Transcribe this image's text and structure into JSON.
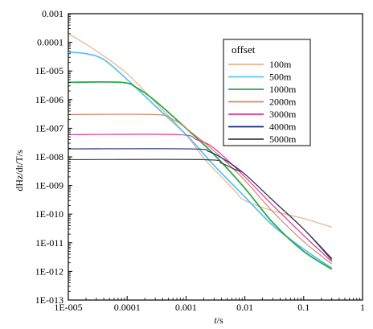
{
  "chart_data": {
    "type": "line",
    "xscale": "log",
    "yscale": "log",
    "xlim": [
      1e-05,
      1
    ],
    "ylim": [
      1e-13,
      0.001
    ],
    "xlabel": "t/s",
    "ylabel": "dHz/dt/T/s",
    "x_tick_labels": [
      "1E-005",
      "0.0001",
      "0.001",
      "0.01",
      "0.1",
      "1"
    ],
    "y_tick_labels": [
      "0.001",
      "0.0001",
      "1E-005",
      "1E-006",
      "1E-007",
      "1E-008",
      "1E-009",
      "1E-010",
      "1E-011",
      "1E-012",
      "1E-013"
    ],
    "legend": {
      "title": "offset",
      "placement": "top-right"
    },
    "grid": false,
    "series": [
      {
        "name": "100m",
        "color": "#e8b48a",
        "points": [
          [
            1e-05,
            0.0002
          ],
          [
            3e-05,
            5e-05
          ],
          [
            0.0001,
            8e-06
          ],
          [
            0.0003,
            8e-07
          ],
          [
            0.001,
            6e-08
          ],
          [
            0.002,
            9e-09
          ],
          [
            0.004,
            2e-09
          ],
          [
            0.007,
            6e-10
          ],
          [
            0.01,
            3e-10
          ],
          [
            0.03,
            1.3e-10
          ],
          [
            0.1,
            7e-11
          ],
          [
            0.3,
            3.5e-11
          ]
        ]
      },
      {
        "name": "500m",
        "color": "#5bc4f0",
        "points": [
          [
            1e-05,
            4.5e-05
          ],
          [
            2e-05,
            4e-05
          ],
          [
            4e-05,
            2.5e-05
          ],
          [
            0.0001,
            5e-06
          ],
          [
            0.0003,
            6e-07
          ],
          [
            0.001,
            6e-08
          ],
          [
            0.003,
            5e-09
          ],
          [
            0.01,
            4e-10
          ],
          [
            0.03,
            4e-11
          ],
          [
            0.1,
            6e-12
          ],
          [
            0.3,
            1.3e-12
          ]
        ]
      },
      {
        "name": "1000m",
        "color": "#2aa84a",
        "points": [
          [
            1e-05,
            4e-06
          ],
          [
            8e-05,
            4e-06
          ],
          [
            0.00015,
            2.5e-06
          ],
          [
            0.0003,
            9e-07
          ],
          [
            0.001,
            1e-07
          ],
          [
            0.003,
            1.2e-08
          ],
          [
            0.01,
            8e-10
          ],
          [
            0.03,
            5e-11
          ],
          [
            0.1,
            5e-12
          ],
          [
            0.3,
            1.2e-12
          ]
        ]
      },
      {
        "name": "2000m",
        "color": "#d4876a",
        "points": [
          [
            1e-05,
            3e-07
          ],
          [
            0.0003,
            3e-07
          ],
          [
            0.0006,
            2e-07
          ],
          [
            0.001,
            1e-07
          ],
          [
            0.003,
            1.6e-08
          ],
          [
            0.01,
            1.5e-09
          ],
          [
            0.03,
            1.2e-10
          ],
          [
            0.1,
            1.1e-11
          ],
          [
            0.3,
            1.8e-12
          ]
        ]
      },
      {
        "name": "3000m",
        "color": "#e2359a",
        "points": [
          [
            1e-05,
            6e-08
          ],
          [
            0.0007,
            6e-08
          ],
          [
            0.0015,
            4e-08
          ],
          [
            0.003,
            2e-08
          ],
          [
            0.01,
            2e-09
          ],
          [
            0.03,
            2e-10
          ],
          [
            0.1,
            1.8e-11
          ],
          [
            0.3,
            2.2e-12
          ]
        ]
      },
      {
        "name": "4000m",
        "color": "#1f2a7a",
        "points": [
          [
            1e-05,
            1.9e-08
          ],
          [
            0.0012,
            1.9e-08
          ],
          [
            0.0025,
            1.5e-08
          ],
          [
            0.005,
            7e-09
          ],
          [
            0.01,
            2.5e-09
          ],
          [
            0.03,
            3e-10
          ],
          [
            0.1,
            3e-11
          ],
          [
            0.3,
            2.8e-12
          ]
        ]
      },
      {
        "name": "5000m",
        "color": "#404040",
        "points": [
          [
            1e-05,
            8e-09
          ],
          [
            0.002,
            8e-09
          ],
          [
            0.004,
            6e-09
          ],
          [
            0.007,
            3.5e-09
          ],
          [
            0.01,
            2.5e-09
          ],
          [
            0.03,
            3e-10
          ],
          [
            0.1,
            3e-11
          ],
          [
            0.3,
            2.5e-12
          ]
        ]
      }
    ]
  }
}
